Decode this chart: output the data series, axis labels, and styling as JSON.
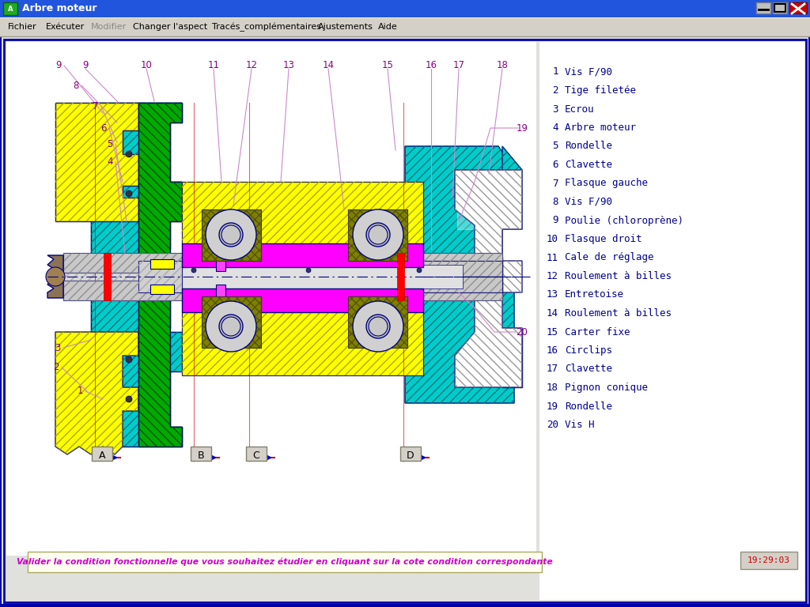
{
  "title": "Arbre moteur",
  "menu_items": [
    "Fichier",
    "Exécuter",
    "Modifier",
    "Changer l'aspect",
    "Tracés_complémentaires",
    "Ajustements",
    "Aide"
  ],
  "menu_x": [
    10,
    58,
    115,
    168,
    268,
    402,
    478
  ],
  "parts_list": [
    {
      "num": "1",
      "name": "Vis F/90"
    },
    {
      "num": "2",
      "name": "Tige filetée"
    },
    {
      "num": "3",
      "name": "Ecrou"
    },
    {
      "num": "4",
      "name": "Arbre moteur"
    },
    {
      "num": "5",
      "name": "Rondelle"
    },
    {
      "num": "6",
      "name": "Clavette"
    },
    {
      "num": "7",
      "name": "Flasque gauche"
    },
    {
      "num": "8",
      "name": "Vis F/90"
    },
    {
      "num": "9",
      "name": "Poulie (chloroprène)"
    },
    {
      "num": "10",
      "name": "Flasque droit"
    },
    {
      "num": "11",
      "name": "Cale de réglage"
    },
    {
      "num": "12",
      "name": "Roulement à billes"
    },
    {
      "num": "13",
      "name": "Entretoise"
    },
    {
      "num": "14",
      "name": "Roulement à billes"
    },
    {
      "num": "15",
      "name": "Carter fixe"
    },
    {
      "num": "16",
      "name": "Circlips"
    },
    {
      "num": "17",
      "name": "Clavette"
    },
    {
      "num": "18",
      "name": "Pignon conique"
    },
    {
      "num": "19",
      "name": "Rondelle"
    },
    {
      "num": "20",
      "name": "Vis H"
    }
  ],
  "bottom_text": "Valider la condition fonctionnelle que vous souhaitez étudier en cliquant sur la cote condition correspondante",
  "time_text": "19:29:03",
  "col_cyan": "#00CCCC",
  "col_yellow": "#FFFF00",
  "col_green": "#00AA00",
  "col_magenta": "#FF00FF",
  "col_gray": "#C8C8C8",
  "col_olive": "#808000",
  "col_red": "#FF0000",
  "col_outline": "#000080",
  "col_parts": "#00008B",
  "col_leader": "#CC88CC",
  "col_dim": "#CC0000",
  "col_bottom_text": "#CC00CC"
}
